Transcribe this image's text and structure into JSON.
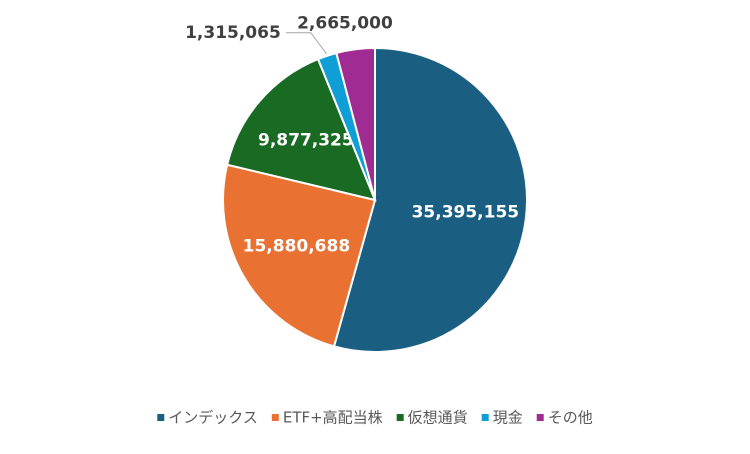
{
  "chart_data": {
    "type": "pie",
    "categories": [
      "インデックス",
      "ETF+高配当株",
      "仮想通貨",
      "現金",
      "その他"
    ],
    "values": [
      35395155,
      15880688,
      9877325,
      1315065,
      2665000
    ],
    "value_labels": [
      "35,395,155",
      "15,880,688",
      "9,877,325",
      "1,315,065",
      "2,665,000"
    ],
    "colors": [
      "#1a5f82",
      "#e97132",
      "#196b24",
      "#0f9ed5",
      "#a02b93"
    ],
    "legend": "bottom"
  }
}
